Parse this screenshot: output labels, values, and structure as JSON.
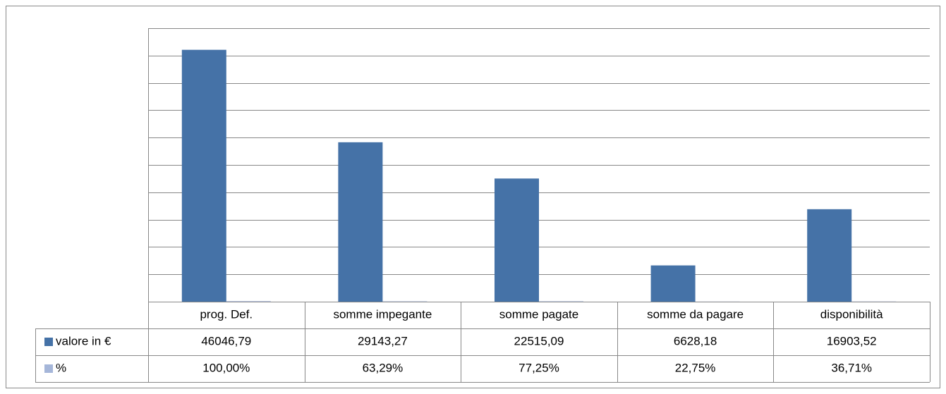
{
  "chart_data": {
    "type": "bar",
    "categories": [
      "prog. Def.",
      "somme impegante",
      "somme pagate",
      "somme da pagare",
      "disponibilità"
    ],
    "series": [
      {
        "name": "valore in €",
        "color": "#4572a7",
        "values": [
          46046.79,
          29143.27,
          22515.09,
          6628.18,
          16903.52
        ],
        "value_labels": [
          "46046,79",
          "29143,27",
          "22515,09",
          "6628,18",
          "16903,52"
        ]
      },
      {
        "name": "%",
        "color": "#a5b6d9",
        "values": [
          100,
          63.29,
          77.25,
          22.75,
          36.71
        ],
        "value_labels": [
          "100,00%",
          "63,29%",
          "77,25%",
          "22,75%",
          "36,71%"
        ]
      }
    ],
    "ylim": [
      0,
      50000
    ],
    "yticks": [
      0,
      5000,
      10000,
      15000,
      20000,
      25000,
      30000,
      35000,
      40000,
      45000,
      50000
    ],
    "grid": true
  }
}
